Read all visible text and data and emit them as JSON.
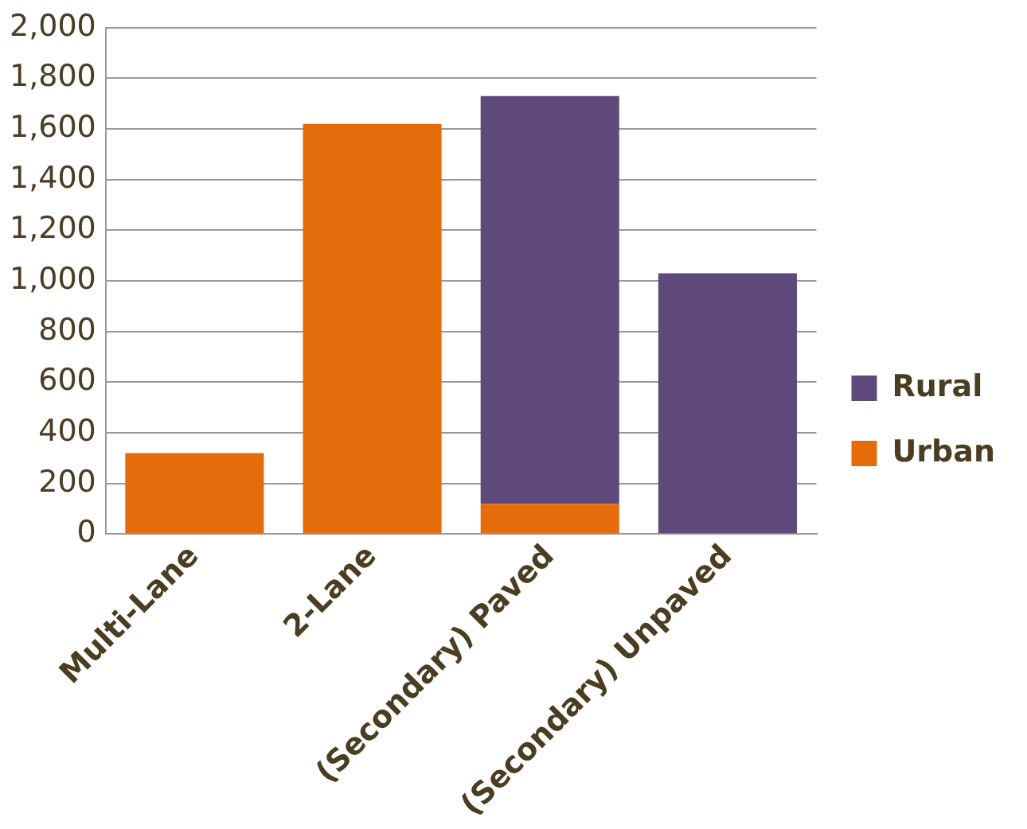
{
  "chart_data": {
    "type": "bar",
    "stacked": true,
    "categories": [
      "Multi-Lane",
      "2-Lane",
      "(Secondary) Paved",
      "(Secondary) Unpaved"
    ],
    "series": [
      {
        "name": "Urban",
        "color": "#e46c0a",
        "values": [
          320,
          1620,
          120,
          0
        ]
      },
      {
        "name": "Rural",
        "color": "#5f497a",
        "values": [
          0,
          0,
          1610,
          1030
        ]
      }
    ],
    "ylim": [
      0,
      2000
    ],
    "yticks": [
      {
        "value": 0,
        "label": "0"
      },
      {
        "value": 200,
        "label": "200"
      },
      {
        "value": 400,
        "label": "400"
      },
      {
        "value": 600,
        "label": "600"
      },
      {
        "value": 800,
        "label": "800"
      },
      {
        "value": 1000,
        "label": "1,000"
      },
      {
        "value": 1200,
        "label": "1,200"
      },
      {
        "value": 1400,
        "label": "1,400"
      },
      {
        "value": 1600,
        "label": "1,600"
      },
      {
        "value": 1800,
        "label": "1,800"
      },
      {
        "value": 2000,
        "label": "2,000"
      }
    ],
    "grid": "y",
    "legend": "right"
  }
}
